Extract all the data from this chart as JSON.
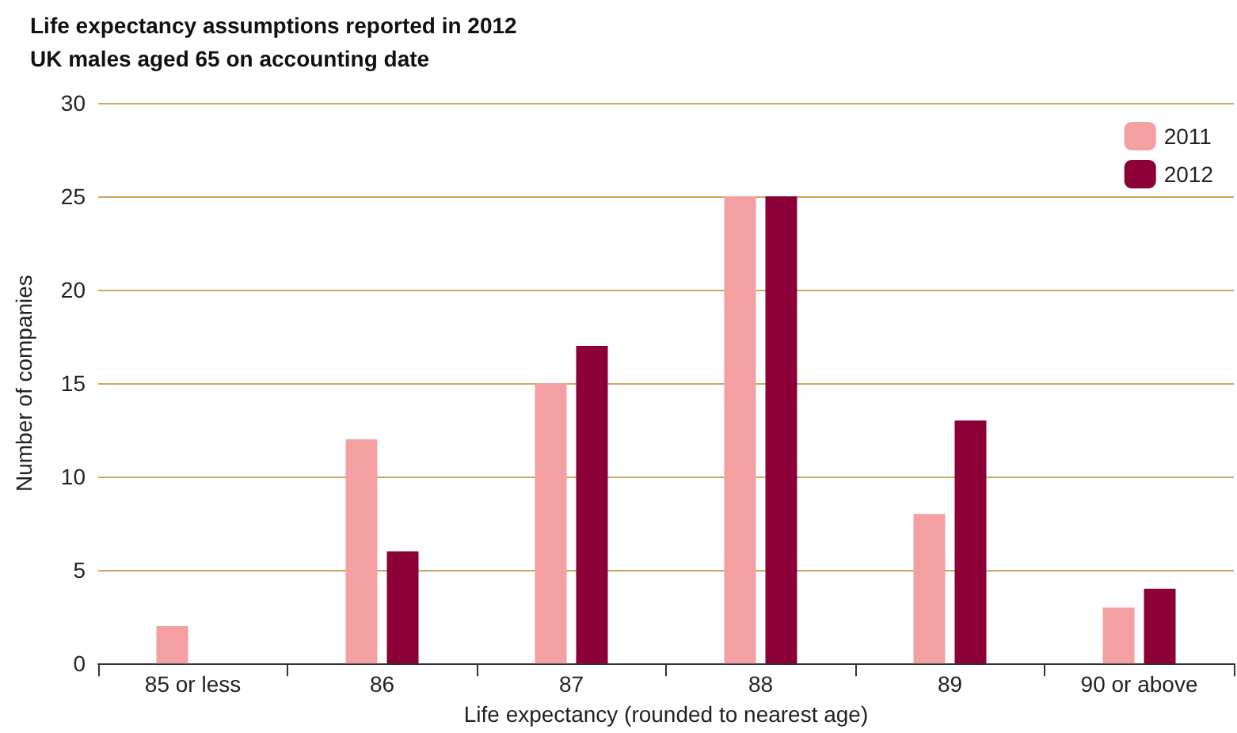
{
  "chart_data": {
    "type": "bar",
    "title": "Life expectancy assumptions reported in 2012",
    "subtitle": "UK males aged 65 on accounting date",
    "xlabel": "Life expectancy (rounded to nearest age)",
    "ylabel": "Number of companies",
    "categories": [
      "85 or less",
      "86",
      "87",
      "88",
      "89",
      "90 or above"
    ],
    "series": [
      {
        "name": "2011",
        "color": "#f4a0a2",
        "values": [
          2,
          12,
          15,
          25,
          8,
          3
        ]
      },
      {
        "name": "2012",
        "color": "#8b0036",
        "values": [
          0,
          6,
          17,
          25,
          13,
          4
        ]
      }
    ],
    "ylim": [
      0,
      30
    ],
    "yticks": [
      0,
      5,
      10,
      15,
      20,
      25,
      30
    ],
    "grid": "y",
    "legend": "top right"
  }
}
